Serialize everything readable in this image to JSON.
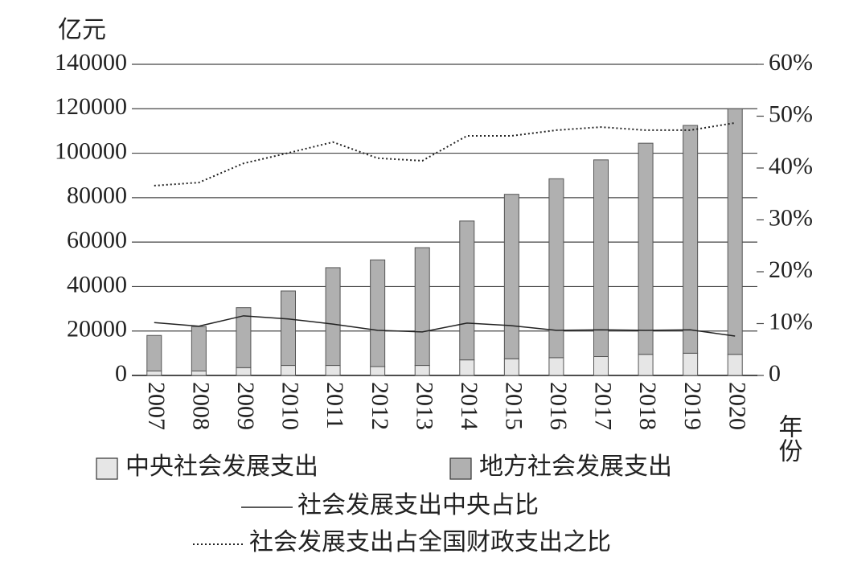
{
  "chart_data": {
    "type": "bar",
    "stacked": true,
    "y_label": "亿元",
    "x_label": "年份",
    "categories": [
      "2007",
      "2008",
      "2009",
      "2010",
      "2011",
      "2012",
      "2013",
      "2014",
      "2015",
      "2016",
      "2017",
      "2018",
      "2019",
      "2020"
    ],
    "series": [
      {
        "name": "中央社会发展支出",
        "color": "#e6e6e6",
        "type": "bar",
        "values": [
          2000,
          2000,
          3500,
          4500,
          4500,
          4000,
          4500,
          7000,
          7500,
          8000,
          8500,
          9500,
          10000,
          9500
        ]
      },
      {
        "name": "地方社会发展支出",
        "color": "#b0b0b0",
        "type": "bar",
        "values": [
          16000,
          20000,
          27000,
          33500,
          44000,
          48000,
          53000,
          62500,
          74000,
          80500,
          88500,
          95000,
          102500,
          110500
        ]
      },
      {
        "name": "社会发展支出中央占比",
        "color": "#222222",
        "type": "line",
        "style": "solid",
        "axis": "y2",
        "values": [
          10.2,
          9.5,
          11.5,
          10.9,
          9.9,
          8.7,
          8.4,
          10.1,
          9.6,
          8.7,
          8.8,
          8.7,
          8.8,
          7.6
        ]
      },
      {
        "name": "社会发展支出占全国财政支出之比",
        "color": "#222222",
        "type": "line",
        "style": "dotted",
        "axis": "y2",
        "values": [
          36.6,
          37.2,
          40.9,
          42.9,
          45.0,
          41.9,
          41.4,
          46.2,
          46.2,
          47.3,
          47.9,
          47.3,
          47.3,
          48.7
        ]
      }
    ],
    "ylim": [
      0,
      140000
    ],
    "yticks": [
      0,
      20000,
      40000,
      60000,
      80000,
      100000,
      120000,
      140000
    ],
    "y2lim": [
      0,
      60
    ],
    "y2ticks": [
      0,
      {
        "value": 10,
        "label": "10%"
      },
      {
        "value": 20,
        "label": "20%"
      },
      {
        "value": 30,
        "label": "30%"
      },
      {
        "value": 40,
        "label": "40%"
      },
      {
        "value": 50,
        "label": "50%"
      },
      {
        "value": 60,
        "label": "60%"
      }
    ],
    "grid": true
  }
}
